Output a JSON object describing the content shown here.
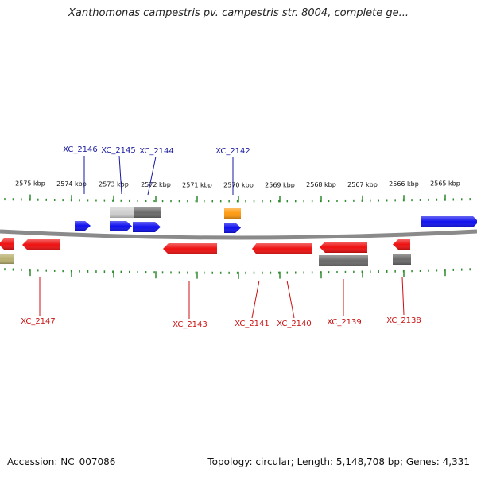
{
  "title": "Xanthomonas campestris pv. campestris str. 8004, complete ge...",
  "footer": {
    "accession": "Accession: NC_007086",
    "summary": "Topology: circular; Length: 5,148,708 bp; Genes: 4,331"
  },
  "colors": {
    "backbone": "#8a8a8a",
    "tick": "#2e8b2e",
    "label_top": "#1a1aa0",
    "label_bottom": "#cc1111",
    "blue": "#1010ee",
    "red": "#ee1010",
    "gray": "#6a6a6a",
    "lightgray": "#cfcfcf",
    "orange": "#ff9a10",
    "khaki": "#b8b070"
  },
  "axis": {
    "kbp_labels": [
      "2575 kbp",
      "2574 kbp",
      "2573 kbp",
      "2572 kbp",
      "2571 kbp",
      "2570 kbp",
      "2569 kbp",
      "2568 kbp",
      "2567 kbp",
      "2566 kbp",
      "2565 kbp"
    ]
  },
  "genes_top": [
    "XC_2146",
    "XC_2145",
    "XC_2144",
    "XC_2142"
  ],
  "genes_bottom": [
    "XC_2147",
    "XC_2143",
    "XC_2141",
    "XC_2140",
    "XC_2139",
    "XC_2138"
  ]
}
